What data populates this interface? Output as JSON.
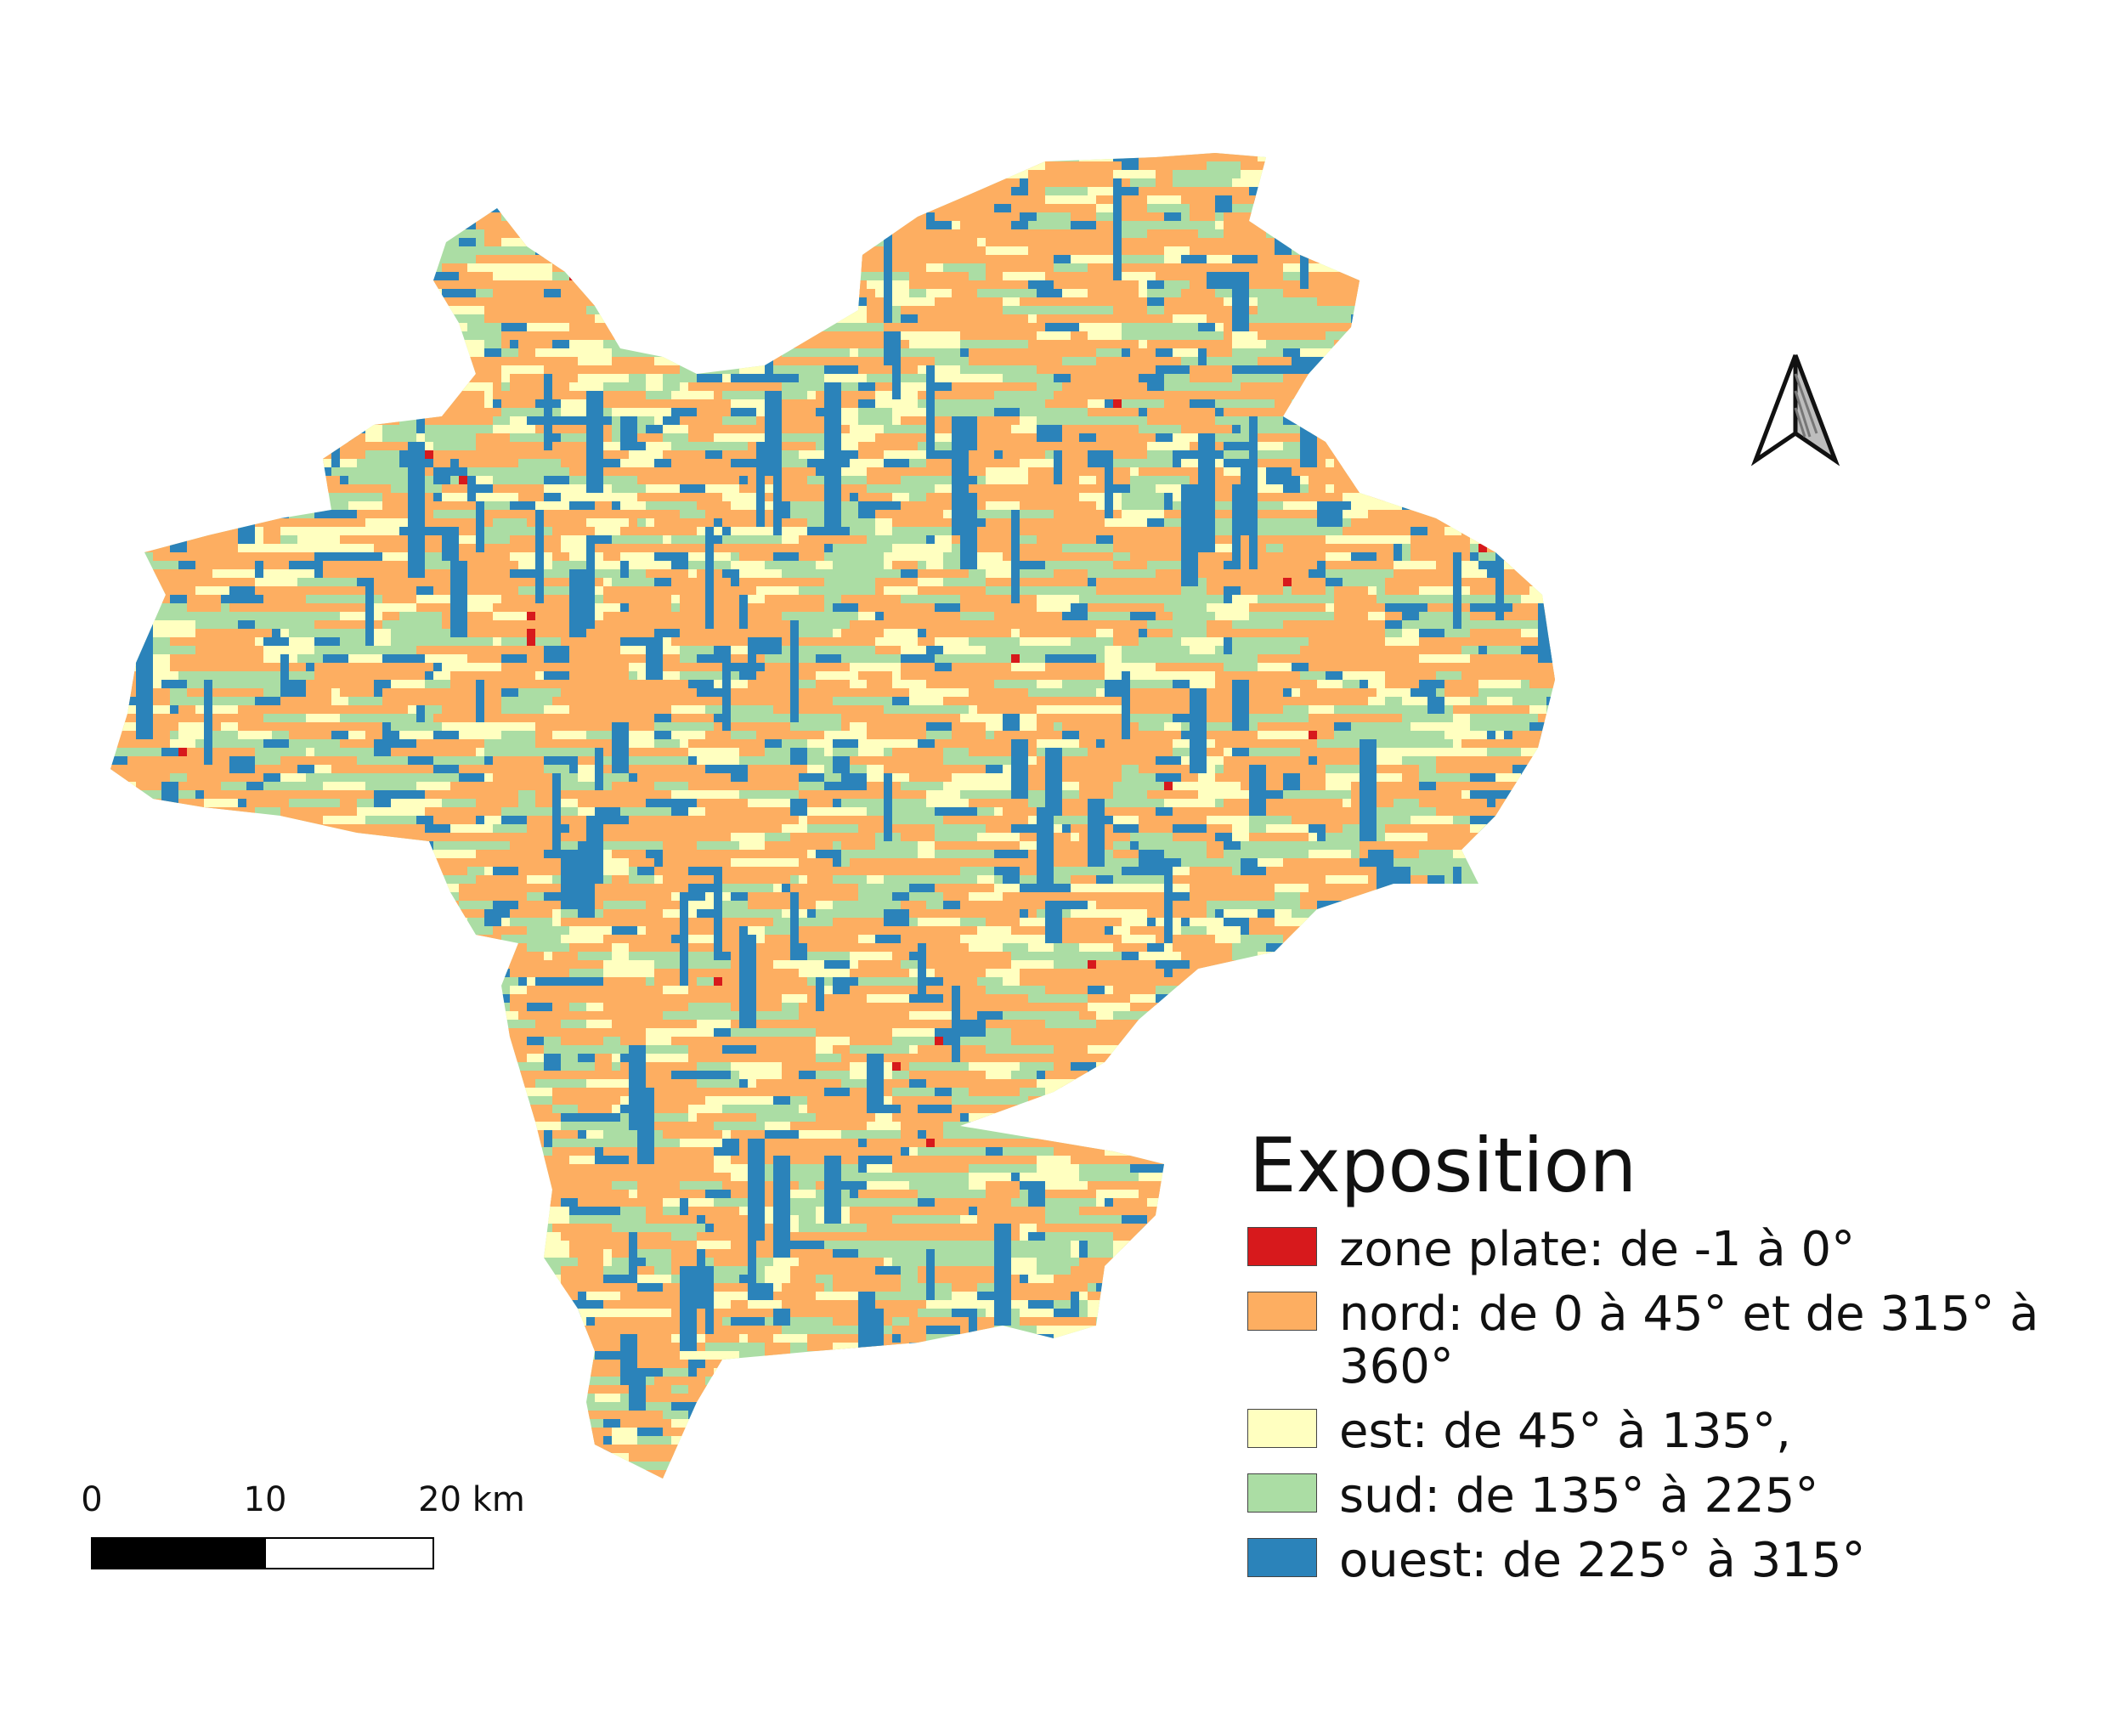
{
  "colors": {
    "flat": "#d7191c",
    "north": "#fdae61",
    "east": "#ffffc0",
    "south": "#abdda4",
    "west": "#2b83ba"
  },
  "legend": {
    "title": "Exposition",
    "items": [
      {
        "key": "flat",
        "label": " zone plate: de -1 à 0°",
        "color": "#d7191c"
      },
      {
        "key": "north",
        "label": "nord: de 0 à 45° et de 315° à 360°",
        "color": "#fdae61"
      },
      {
        "key": "east",
        "label": "est: de 45° à 135°,",
        "color": "#ffffc0"
      },
      {
        "key": "south",
        "label": "sud: de 135° à 225°",
        "color": "#abdda4"
      },
      {
        "key": "west",
        "label": "ouest: de 225° à 315°",
        "color": "#2b83ba"
      }
    ]
  },
  "scalebar": {
    "labels": [
      "0",
      "10",
      "20 km"
    ]
  },
  "north_arrow": {
    "icon": "north-arrow-icon"
  }
}
